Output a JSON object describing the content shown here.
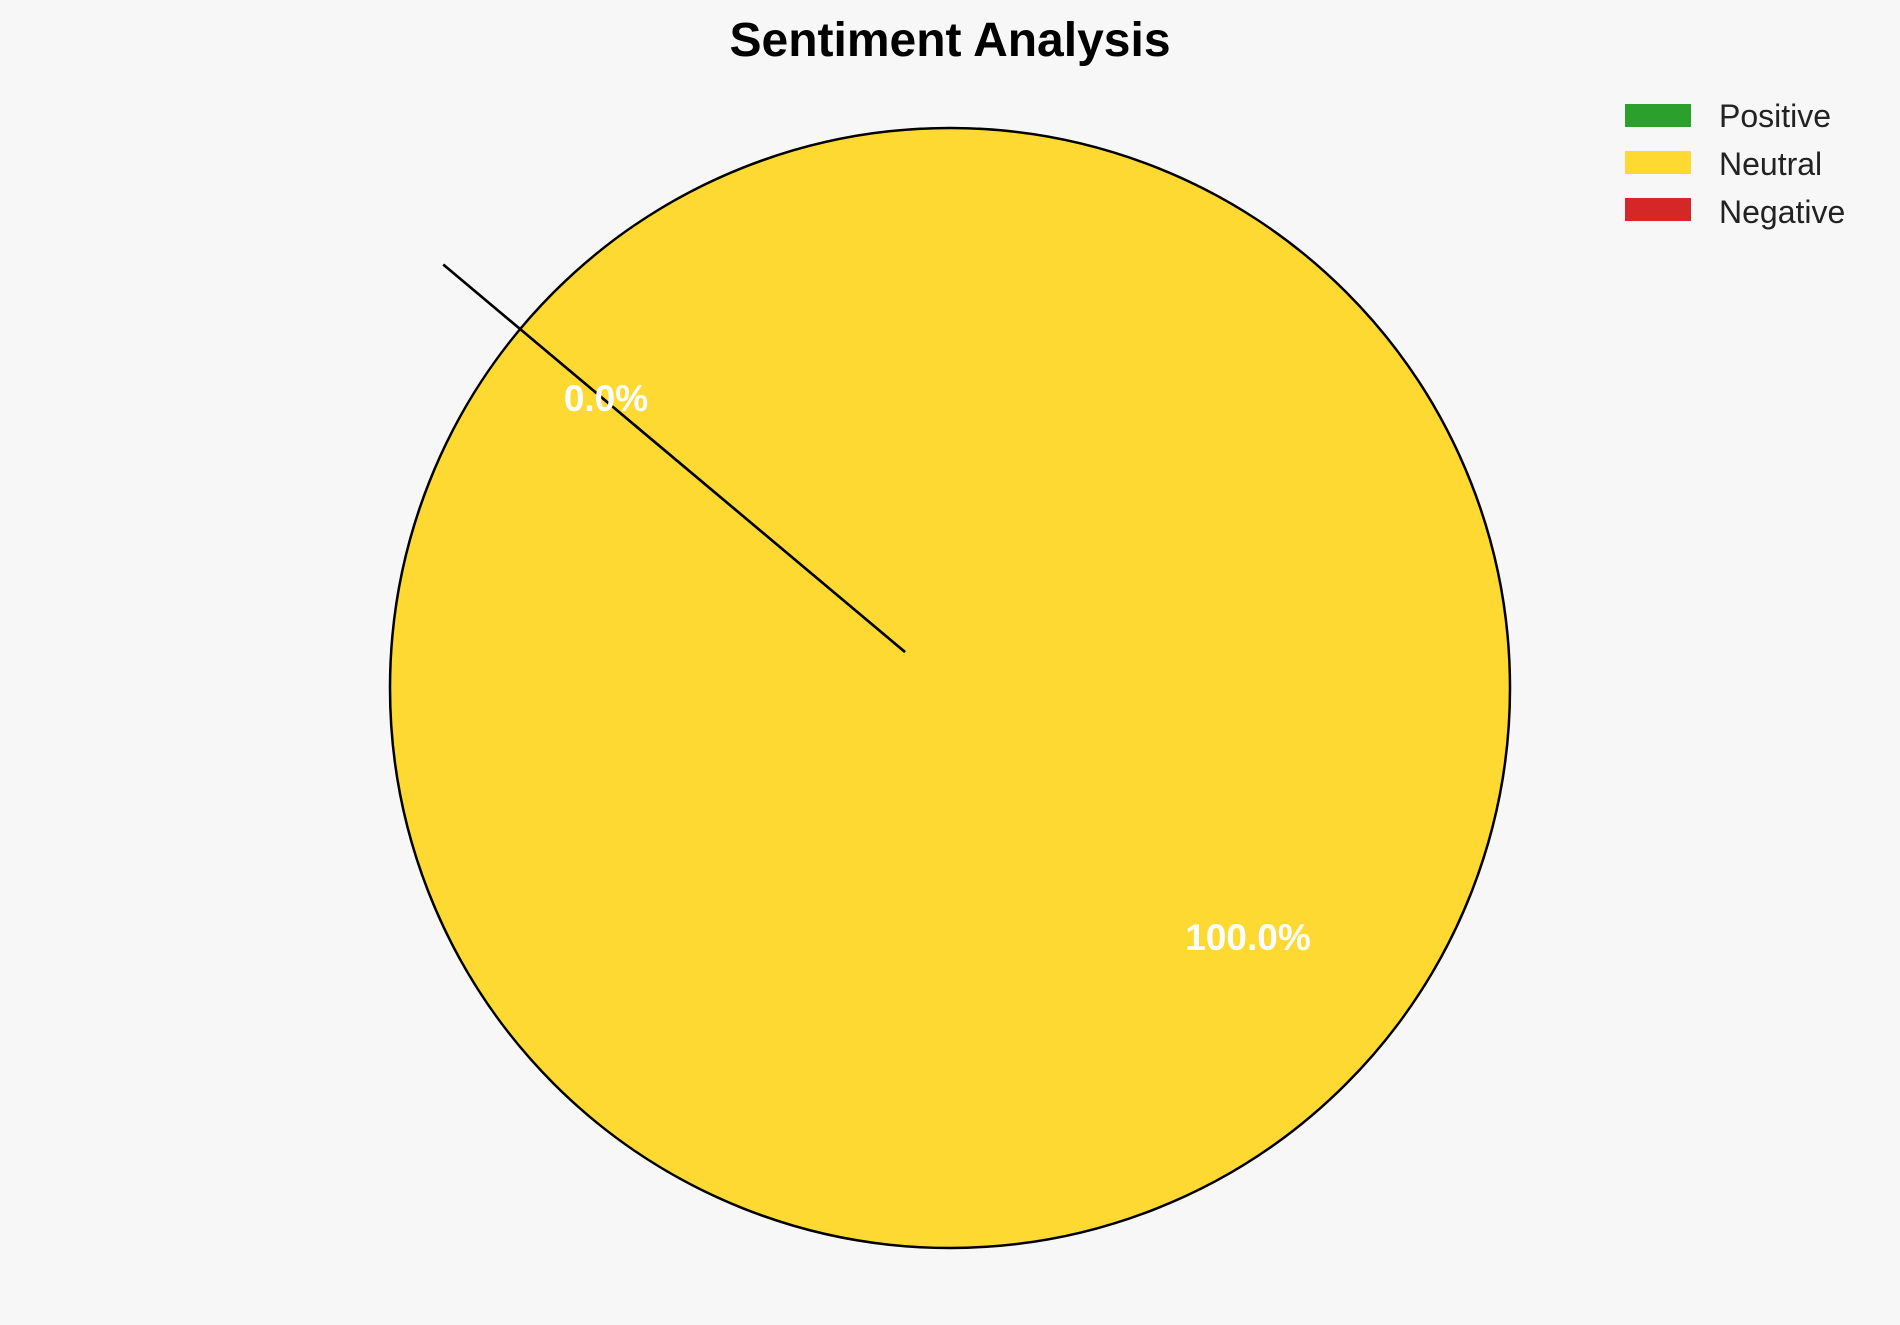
{
  "chart_data": {
    "type": "pie",
    "title": "Sentiment Analysis",
    "categories": [
      "Positive",
      "Neutral",
      "Negative"
    ],
    "values": [
      0.0,
      100.0,
      0.0
    ],
    "slice_labels": [
      "0.0%",
      "100.0%",
      ""
    ],
    "colors": [
      "#2ca02c",
      "#fdd931",
      "#d62728"
    ],
    "edge_color": "#000000",
    "start_angle_deg": 140,
    "legend_position": "top-right",
    "background": "#f7f7f7"
  }
}
